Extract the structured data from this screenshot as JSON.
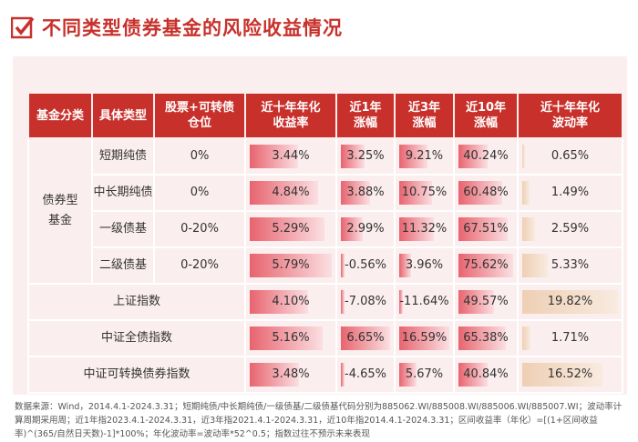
{
  "header": {
    "title": "不同类型债券基金的风险收益情况"
  },
  "table": {
    "columns": [
      "基金分类",
      "具体类型",
      "股票+可转债\n仓位",
      "近十年年化\n收益率",
      "近1年\n涨幅",
      "近3年\n涨幅",
      "近10年\n涨幅",
      "近十年年化\n波动率"
    ],
    "group": "债券型\n基金",
    "rows": [
      {
        "type": "短期纯债",
        "position": "0%",
        "metrics": [
          {
            "value": 3.44,
            "label": "3.44%"
          },
          {
            "value": 3.25,
            "label": "3.25%"
          },
          {
            "value": 9.21,
            "label": "9.21%"
          },
          {
            "value": 40.24,
            "label": "40.24%"
          },
          {
            "value": 0.65,
            "label": "0.65%"
          }
        ]
      },
      {
        "type": "中长期纯债",
        "position": "0%",
        "metrics": [
          {
            "value": 4.84,
            "label": "4.84%"
          },
          {
            "value": 3.88,
            "label": "3.88%"
          },
          {
            "value": 10.75,
            "label": "10.75%"
          },
          {
            "value": 60.48,
            "label": "60.48%"
          },
          {
            "value": 1.49,
            "label": "1.49%"
          }
        ]
      },
      {
        "type": "一级债基",
        "position": "0-20%",
        "metrics": [
          {
            "value": 5.29,
            "label": "5.29%"
          },
          {
            "value": 2.99,
            "label": "2.99%"
          },
          {
            "value": 11.32,
            "label": "11.32%"
          },
          {
            "value": 67.51,
            "label": "67.51%"
          },
          {
            "value": 2.59,
            "label": "2.59%"
          }
        ]
      },
      {
        "type": "二级债基",
        "position": "0-20%",
        "metrics": [
          {
            "value": 5.79,
            "label": "5.79%"
          },
          {
            "value": -0.56,
            "label": "-0.56%"
          },
          {
            "value": 3.96,
            "label": "3.96%"
          },
          {
            "value": 75.62,
            "label": "75.62%"
          },
          {
            "value": 5.33,
            "label": "5.33%"
          }
        ]
      },
      {
        "type": "上证指数",
        "metrics": [
          {
            "value": 4.1,
            "label": "4.10%"
          },
          {
            "value": -7.08,
            "label": "-7.08%"
          },
          {
            "value": -11.64,
            "label": "-11.64%"
          },
          {
            "value": 49.57,
            "label": "49.57%"
          },
          {
            "value": 19.82,
            "label": "19.82%"
          }
        ]
      },
      {
        "type": "中证全债指数",
        "metrics": [
          {
            "value": 5.16,
            "label": "5.16%"
          },
          {
            "value": 6.65,
            "label": "6.65%"
          },
          {
            "value": 16.59,
            "label": "16.59%"
          },
          {
            "value": 65.38,
            "label": "65.38%"
          },
          {
            "value": 1.71,
            "label": "1.71%"
          }
        ]
      },
      {
        "type": "中证可转换债券指数",
        "metrics": [
          {
            "value": 3.48,
            "label": "3.48%"
          },
          {
            "value": -4.65,
            "label": "-4.65%"
          },
          {
            "value": 5.67,
            "label": "5.67%"
          },
          {
            "value": 40.84,
            "label": "40.84%"
          },
          {
            "value": 16.52,
            "label": "16.52%"
          }
        ]
      }
    ]
  },
  "footnote": "数据来源：Wind，2014.4.1-2024.3.31；短期纯债/中长期纯债/一级债基/二级债基代码分别为885062.WI/885008.WI/885006.WI/885007.WI；波动率计算周期采用周；近1年指2023.4.1-2024.3.31，近3年指2021.4.1-2024.3.31，近10年指2014.4.1-2024.3.31；区间收益率（年化）=[(1+区间收益率)^(365/自然日天数)-1]*100%；年化波动率=波动率*52^0.5；指数过往不预示未来表现"
}
